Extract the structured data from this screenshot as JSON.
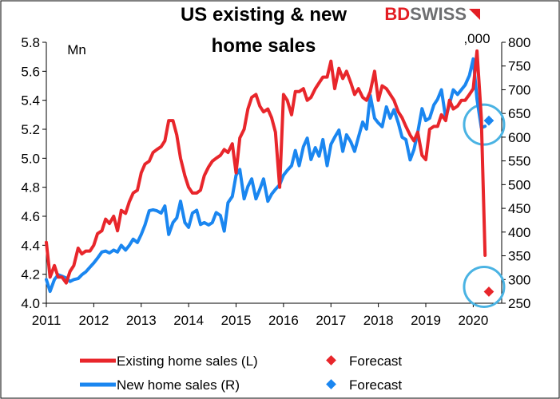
{
  "chart_data": {
    "type": "line",
    "title": [
      "US existing & new",
      "home sales"
    ],
    "brand": {
      "part1": "BD",
      "part2": "SWISS",
      "color1": "#e31e24",
      "color2": "#6d6e70"
    },
    "left_axis": {
      "unit": "Mn",
      "ylim": [
        4.0,
        5.8
      ],
      "ticks": [
        "4.0",
        "4.2",
        "4.4",
        "4.6",
        "4.8",
        "5.0",
        "5.2",
        "5.4",
        "5.6",
        "5.8"
      ]
    },
    "right_axis": {
      "unit": ",000",
      "ylim": [
        250,
        800
      ],
      "ticks": [
        "250",
        "300",
        "350",
        "400",
        "450",
        "500",
        "550",
        "600",
        "650",
        "700",
        "750",
        "800"
      ]
    },
    "x_axis": {
      "xlim": [
        2011.0,
        2020.6
      ],
      "ticks": [
        "2011",
        "2012",
        "2013",
        "2014",
        "2015",
        "2016",
        "2017",
        "2018",
        "2019",
        "2020"
      ]
    },
    "colors": {
      "existing": "#e8262b",
      "new": "#1a86f0",
      "highlight": "#4ab3e3"
    },
    "series": [
      {
        "name": "Existing home sales (L)",
        "axis": "left",
        "color": "#e8262b",
        "values": [
          [
            2011.0,
            4.42
          ],
          [
            2011.08,
            4.18
          ],
          [
            2011.17,
            4.26
          ],
          [
            2011.25,
            4.18
          ],
          [
            2011.33,
            4.18
          ],
          [
            2011.42,
            4.14
          ],
          [
            2011.5,
            4.22
          ],
          [
            2011.58,
            4.26
          ],
          [
            2011.67,
            4.38
          ],
          [
            2011.75,
            4.34
          ],
          [
            2011.83,
            4.36
          ],
          [
            2011.92,
            4.36
          ],
          [
            2012.0,
            4.4
          ],
          [
            2012.08,
            4.48
          ],
          [
            2012.17,
            4.5
          ],
          [
            2012.25,
            4.58
          ],
          [
            2012.33,
            4.55
          ],
          [
            2012.42,
            4.6
          ],
          [
            2012.5,
            4.5
          ],
          [
            2012.58,
            4.64
          ],
          [
            2012.67,
            4.62
          ],
          [
            2012.75,
            4.7
          ],
          [
            2012.83,
            4.76
          ],
          [
            2012.92,
            4.78
          ],
          [
            2013.0,
            4.9
          ],
          [
            2013.08,
            4.96
          ],
          [
            2013.17,
            4.98
          ],
          [
            2013.25,
            5.04
          ],
          [
            2013.33,
            5.06
          ],
          [
            2013.42,
            5.08
          ],
          [
            2013.5,
            5.12
          ],
          [
            2013.58,
            5.26
          ],
          [
            2013.67,
            5.26
          ],
          [
            2013.75,
            5.16
          ],
          [
            2013.83,
            5.0
          ],
          [
            2013.92,
            4.88
          ],
          [
            2014.0,
            4.8
          ],
          [
            2014.08,
            4.76
          ],
          [
            2014.17,
            4.76
          ],
          [
            2014.25,
            4.78
          ],
          [
            2014.33,
            4.88
          ],
          [
            2014.42,
            4.94
          ],
          [
            2014.5,
            4.98
          ],
          [
            2014.58,
            5.0
          ],
          [
            2014.67,
            5.02
          ],
          [
            2014.75,
            5.06
          ],
          [
            2014.83,
            5.04
          ],
          [
            2014.92,
            5.1
          ],
          [
            2015.0,
            4.9
          ],
          [
            2015.08,
            5.14
          ],
          [
            2015.17,
            5.2
          ],
          [
            2015.25,
            5.34
          ],
          [
            2015.33,
            5.42
          ],
          [
            2015.42,
            5.44
          ],
          [
            2015.5,
            5.36
          ],
          [
            2015.58,
            5.32
          ],
          [
            2015.67,
            5.34
          ],
          [
            2015.75,
            5.28
          ],
          [
            2015.83,
            5.18
          ],
          [
            2015.92,
            4.8
          ],
          [
            2016.0,
            5.44
          ],
          [
            2016.08,
            5.4
          ],
          [
            2016.17,
            5.3
          ],
          [
            2016.25,
            5.46
          ],
          [
            2016.33,
            5.46
          ],
          [
            2016.42,
            5.48
          ],
          [
            2016.5,
            5.4
          ],
          [
            2016.58,
            5.42
          ],
          [
            2016.67,
            5.48
          ],
          [
            2016.75,
            5.52
          ],
          [
            2016.83,
            5.56
          ],
          [
            2016.92,
            5.56
          ],
          [
            2017.0,
            5.67
          ],
          [
            2017.08,
            5.48
          ],
          [
            2017.17,
            5.62
          ],
          [
            2017.25,
            5.55
          ],
          [
            2017.33,
            5.6
          ],
          [
            2017.42,
            5.52
          ],
          [
            2017.5,
            5.44
          ],
          [
            2017.58,
            5.48
          ],
          [
            2017.67,
            5.42
          ],
          [
            2017.75,
            5.4
          ],
          [
            2017.83,
            5.46
          ],
          [
            2017.92,
            5.6
          ],
          [
            2018.0,
            5.4
          ],
          [
            2018.08,
            5.5
          ],
          [
            2018.17,
            5.48
          ],
          [
            2018.25,
            5.44
          ],
          [
            2018.33,
            5.4
          ],
          [
            2018.42,
            5.32
          ],
          [
            2018.5,
            5.28
          ],
          [
            2018.58,
            5.22
          ],
          [
            2018.67,
            5.16
          ],
          [
            2018.75,
            5.12
          ],
          [
            2018.83,
            5.18
          ],
          [
            2018.92,
            5.02
          ],
          [
            2019.0,
            4.99
          ],
          [
            2019.08,
            5.2
          ],
          [
            2019.17,
            5.22
          ],
          [
            2019.25,
            5.22
          ],
          [
            2019.33,
            5.3
          ],
          [
            2019.42,
            5.26
          ],
          [
            2019.5,
            5.4
          ],
          [
            2019.58,
            5.34
          ],
          [
            2019.67,
            5.36
          ],
          [
            2019.75,
            5.4
          ],
          [
            2019.83,
            5.4
          ],
          [
            2019.92,
            5.44
          ],
          [
            2020.0,
            5.48
          ],
          [
            2020.08,
            5.74
          ],
          [
            2020.17,
            5.28
          ],
          [
            2020.25,
            4.33
          ]
        ],
        "forecast": {
          "label": "Forecast",
          "x": 2020.33,
          "y": 4.08
        }
      },
      {
        "name": "New home sales (R)",
        "axis": "right",
        "color": "#1a86f0",
        "values": [
          [
            2011.0,
            300
          ],
          [
            2011.08,
            275
          ],
          [
            2011.17,
            300
          ],
          [
            2011.25,
            310
          ],
          [
            2011.33,
            307
          ],
          [
            2011.42,
            303
          ],
          [
            2011.5,
            296
          ],
          [
            2011.58,
            300
          ],
          [
            2011.67,
            302
          ],
          [
            2011.75,
            310
          ],
          [
            2011.83,
            316
          ],
          [
            2011.92,
            326
          ],
          [
            2012.0,
            335
          ],
          [
            2012.08,
            345
          ],
          [
            2012.17,
            358
          ],
          [
            2012.25,
            360
          ],
          [
            2012.33,
            356
          ],
          [
            2012.42,
            362
          ],
          [
            2012.5,
            358
          ],
          [
            2012.58,
            372
          ],
          [
            2012.67,
            362
          ],
          [
            2012.75,
            372
          ],
          [
            2012.83,
            385
          ],
          [
            2012.92,
            378
          ],
          [
            2013.0,
            395
          ],
          [
            2013.08,
            415
          ],
          [
            2013.17,
            445
          ],
          [
            2013.25,
            447
          ],
          [
            2013.33,
            445
          ],
          [
            2013.42,
            440
          ],
          [
            2013.5,
            455
          ],
          [
            2013.58,
            395
          ],
          [
            2013.67,
            420
          ],
          [
            2013.75,
            430
          ],
          [
            2013.83,
            465
          ],
          [
            2013.92,
            420
          ],
          [
            2014.0,
            410
          ],
          [
            2014.08,
            440
          ],
          [
            2014.17,
            446
          ],
          [
            2014.25,
            416
          ],
          [
            2014.33,
            420
          ],
          [
            2014.42,
            415
          ],
          [
            2014.5,
            420
          ],
          [
            2014.58,
            441
          ],
          [
            2014.67,
            435
          ],
          [
            2014.75,
            402
          ],
          [
            2014.83,
            462
          ],
          [
            2014.92,
            475
          ],
          [
            2015.0,
            520
          ],
          [
            2015.08,
            532
          ],
          [
            2015.17,
            470
          ],
          [
            2015.25,
            496
          ],
          [
            2015.33,
            512
          ],
          [
            2015.42,
            470
          ],
          [
            2015.5,
            490
          ],
          [
            2015.58,
            512
          ],
          [
            2015.67,
            465
          ],
          [
            2015.75,
            480
          ],
          [
            2015.83,
            490
          ],
          [
            2015.92,
            500
          ],
          [
            2016.0,
            520
          ],
          [
            2016.08,
            530
          ],
          [
            2016.17,
            540
          ],
          [
            2016.25,
            572
          ],
          [
            2016.33,
            540
          ],
          [
            2016.42,
            580
          ],
          [
            2016.5,
            598
          ],
          [
            2016.58,
            553
          ],
          [
            2016.67,
            578
          ],
          [
            2016.75,
            560
          ],
          [
            2016.83,
            595
          ],
          [
            2016.92,
            540
          ],
          [
            2017.0,
            585
          ],
          [
            2017.08,
            600
          ],
          [
            2017.17,
            615
          ],
          [
            2017.25,
            570
          ],
          [
            2017.33,
            605
          ],
          [
            2017.42,
            590
          ],
          [
            2017.5,
            570
          ],
          [
            2017.58,
            600
          ],
          [
            2017.67,
            632
          ],
          [
            2017.75,
            617
          ],
          [
            2017.83,
            688
          ],
          [
            2017.92,
            640
          ],
          [
            2018.0,
            630
          ],
          [
            2018.08,
            622
          ],
          [
            2018.17,
            664
          ],
          [
            2018.25,
            640
          ],
          [
            2018.33,
            658
          ],
          [
            2018.42,
            630
          ],
          [
            2018.5,
            600
          ],
          [
            2018.58,
            595
          ],
          [
            2018.67,
            552
          ],
          [
            2018.75,
            574
          ],
          [
            2018.83,
            610
          ],
          [
            2018.92,
            660
          ],
          [
            2019.0,
            635
          ],
          [
            2019.08,
            640
          ],
          [
            2019.17,
            668
          ],
          [
            2019.25,
            680
          ],
          [
            2019.33,
            700
          ],
          [
            2019.42,
            640
          ],
          [
            2019.5,
            670
          ],
          [
            2019.58,
            700
          ],
          [
            2019.67,
            690
          ],
          [
            2019.75,
            700
          ],
          [
            2019.83,
            710
          ],
          [
            2019.92,
            730
          ],
          [
            2020.0,
            765
          ],
          [
            2020.08,
            680
          ],
          [
            2020.17,
            620
          ],
          [
            2020.25,
            623
          ]
        ],
        "forecast": {
          "label": "Forecast",
          "x": 2020.33,
          "y": 635
        }
      }
    ],
    "legend_placement": "bottom",
    "grid": false
  }
}
